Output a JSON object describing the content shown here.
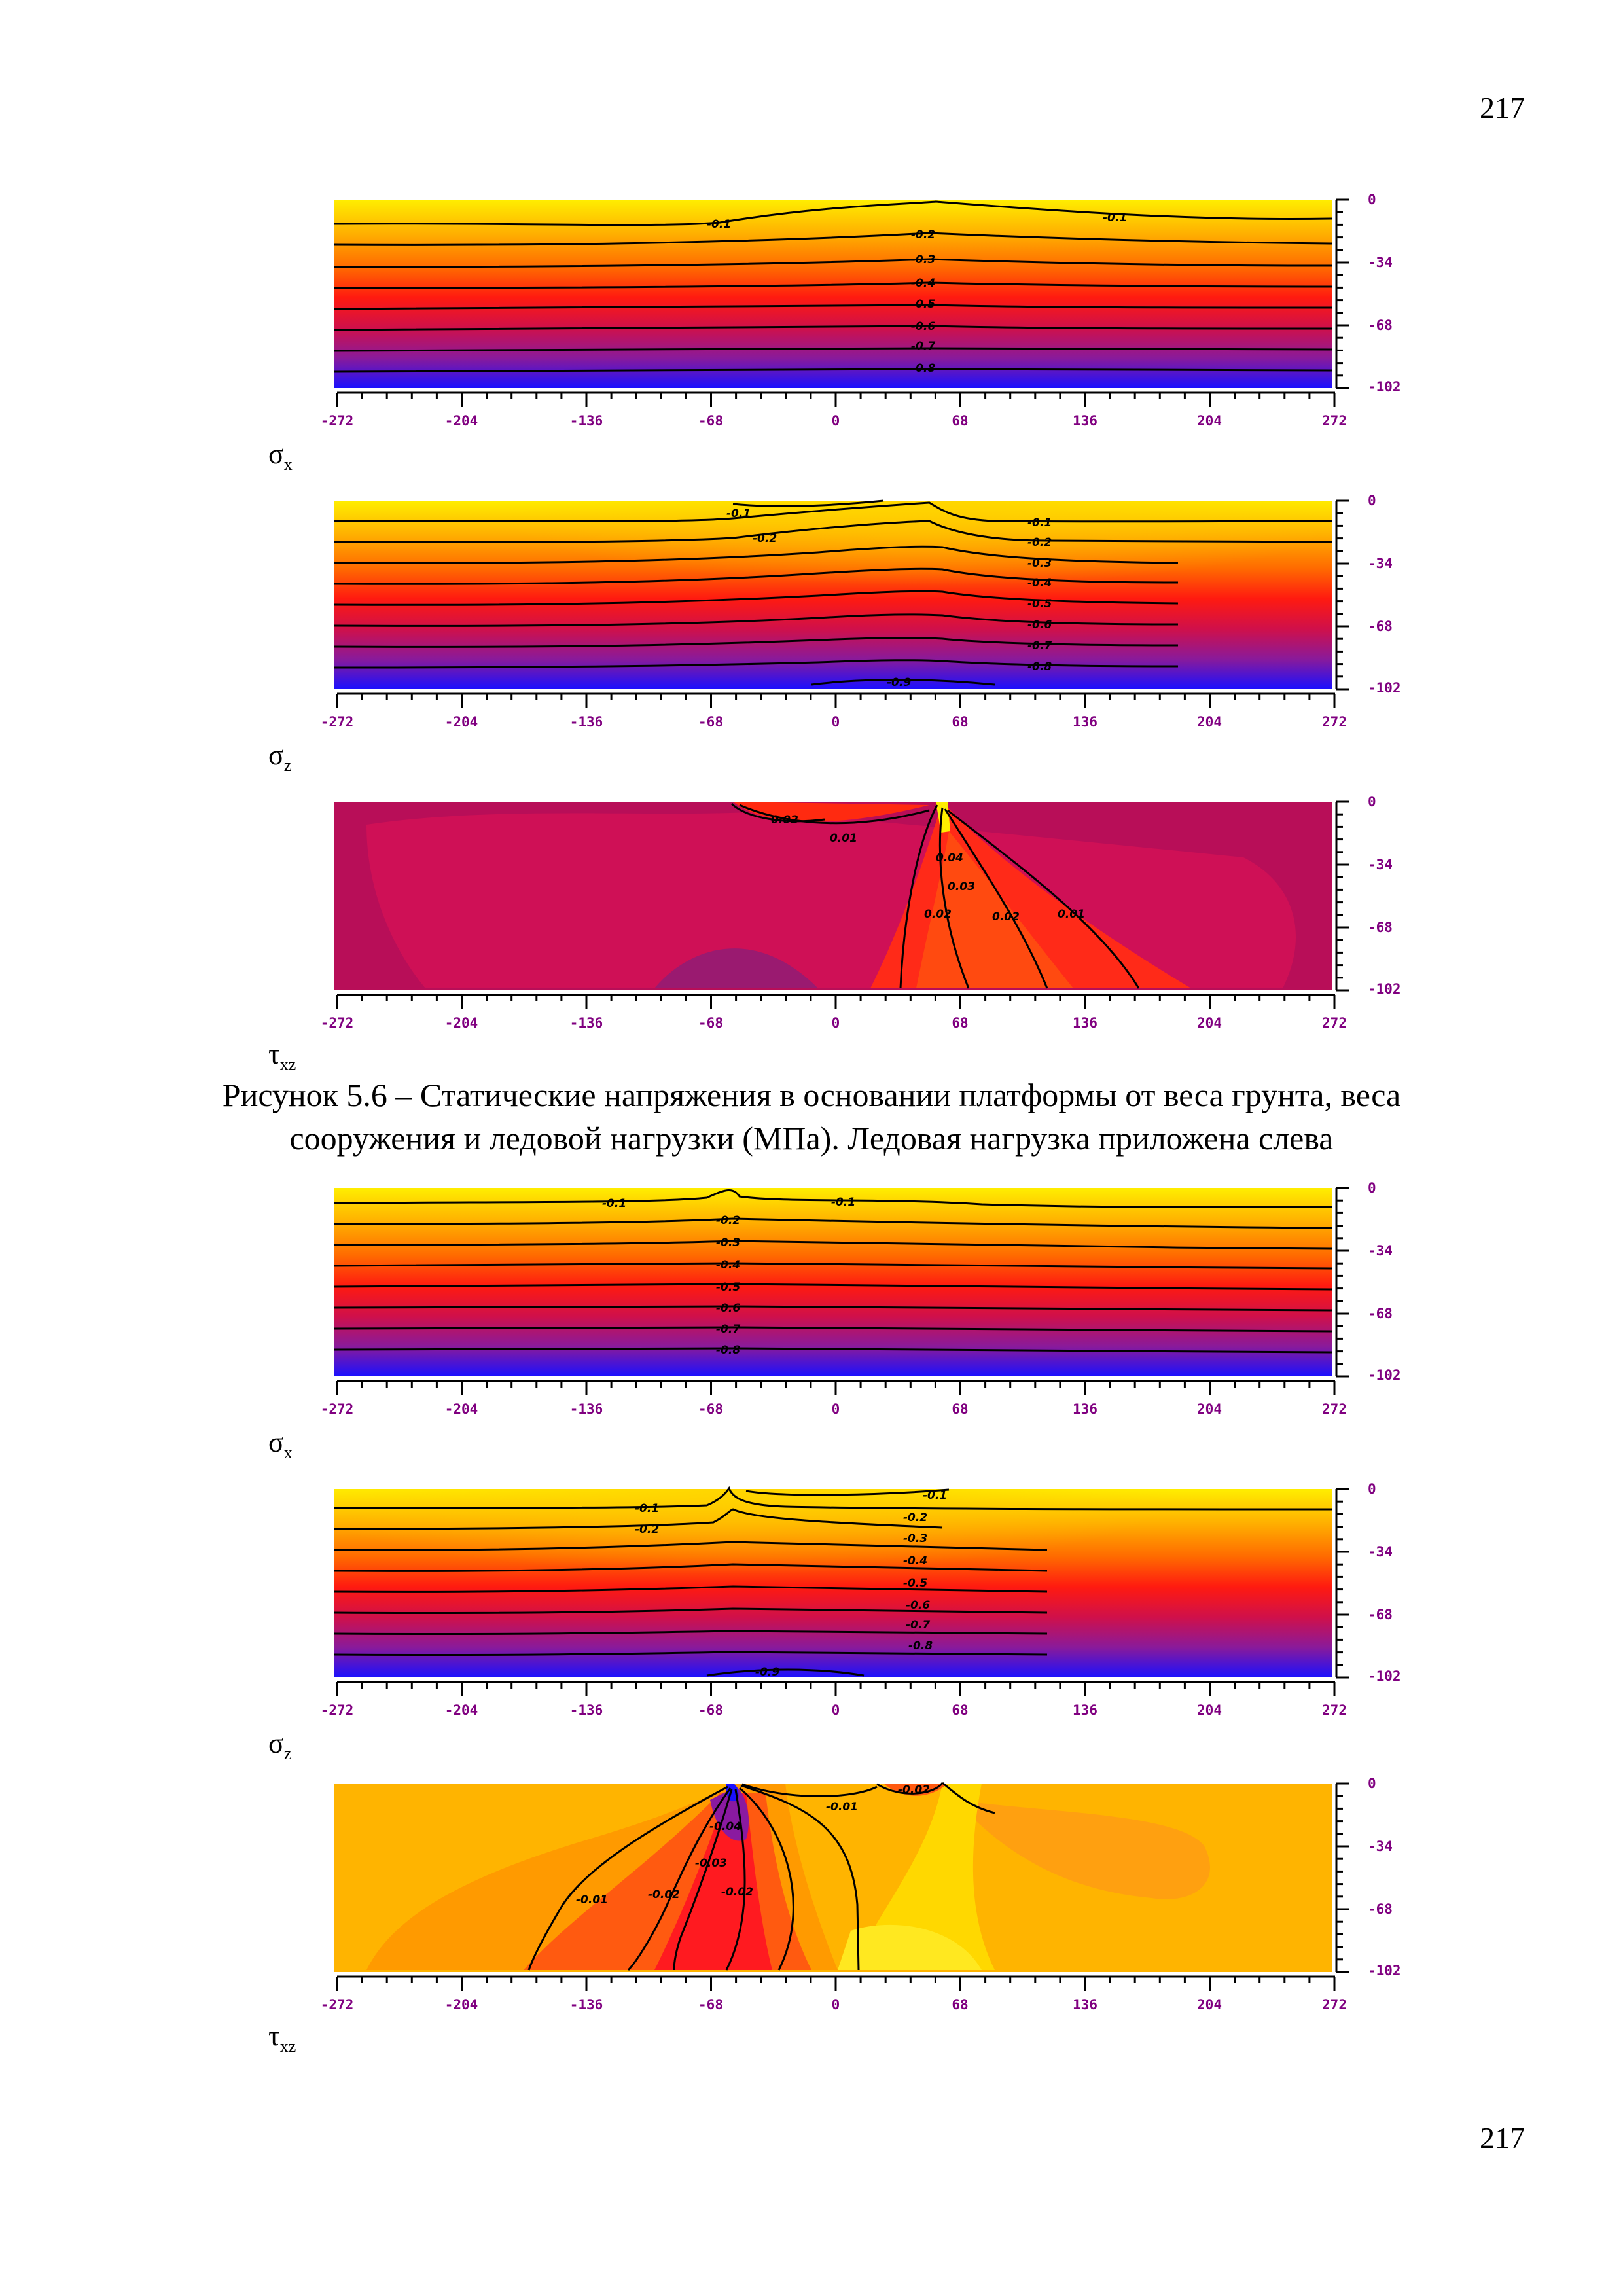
{
  "page_number_top": "217",
  "page_number_bottom": "217",
  "caption_line1": "Рисунок 5.6 – Статические напряжения в основании платформы от веса грунта, веса",
  "caption_line2": "сооружения и ледовой нагрузки (МПа). Ледовая нагрузка приложена слева",
  "axis": {
    "x_ticks": [
      "-272",
      "-204",
      "-136",
      "-68",
      "0",
      "68",
      "136",
      "204",
      "272"
    ],
    "y_ticks": [
      "0",
      "-34",
      "-68",
      "-102"
    ]
  },
  "colors": {
    "yellow": "#ffee00",
    "orange": "#ff9a00",
    "red": "#ff1a10",
    "crimson": "#d0104a",
    "purple": "#8a1a9a",
    "blue": "#1a10ff"
  },
  "chart_data": [
    {
      "type": "heatmap",
      "title": "σx",
      "variable": "σ",
      "subscript": "x",
      "xlim": [
        -272,
        272
      ],
      "ylim": [
        -102,
        0
      ],
      "contour_levels": [
        "-0.1",
        "-0.1",
        "-0.2",
        "-0.3",
        "-0.4",
        "-0.5",
        "-0.6",
        "-0.7",
        "-0.8"
      ]
    },
    {
      "type": "heatmap",
      "title": "σz",
      "variable": "σ",
      "subscript": "z",
      "xlim": [
        -272,
        272
      ],
      "ylim": [
        -102,
        0
      ],
      "contour_levels": [
        "-0.1",
        "-0.2",
        "-0.1",
        "-0.2",
        "-0.3",
        "-0.4",
        "-0.5",
        "-0.6",
        "-0.7",
        "-0.8",
        "-0.9"
      ]
    },
    {
      "type": "heatmap",
      "title": "τxz",
      "variable": "τ",
      "subscript": "xz",
      "xlim": [
        -272,
        272
      ],
      "ylim": [
        -102,
        0
      ],
      "contour_levels": [
        "0.02",
        "0.01",
        "0.04",
        "0.03",
        "0.02",
        "0.02",
        "0.01"
      ]
    },
    {
      "type": "heatmap",
      "title": "σx",
      "variable": "σ",
      "subscript": "x",
      "xlim": [
        -272,
        272
      ],
      "ylim": [
        -102,
        0
      ],
      "contour_levels": [
        "-0.1",
        "-0.1",
        "-0.2",
        "-0.3",
        "-0.4",
        "-0.5",
        "-0.6",
        "-0.7",
        "-0.8"
      ]
    },
    {
      "type": "heatmap",
      "title": "σz",
      "variable": "σ",
      "subscript": "z",
      "xlim": [
        -272,
        272
      ],
      "ylim": [
        -102,
        0
      ],
      "contour_levels": [
        "-0.1",
        "-0.2",
        "-0.1",
        "-0.2",
        "-0.3",
        "-0.4",
        "-0.5",
        "-0.6",
        "-0.7",
        "-0.8",
        "-0.9"
      ]
    },
    {
      "type": "heatmap",
      "title": "τxz",
      "variable": "τ",
      "subscript": "xz",
      "xlim": [
        -272,
        272
      ],
      "ylim": [
        -102,
        0
      ],
      "contour_levels": [
        "-0.02",
        "-0.01",
        "-0.04",
        "-0.03",
        "-0.01",
        "-0.02",
        "-0.02"
      ]
    }
  ]
}
